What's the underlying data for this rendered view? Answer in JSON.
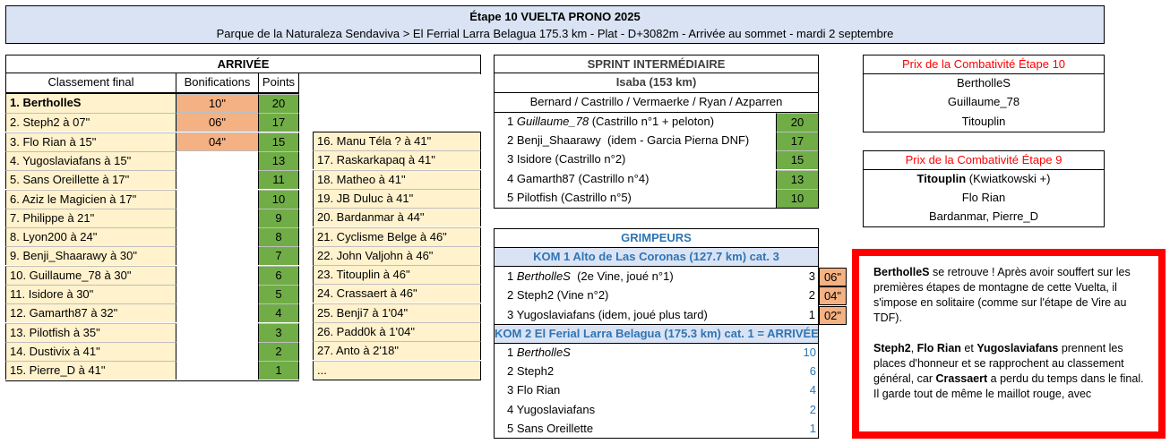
{
  "header": {
    "title": "Étape 10 VUELTA PRONO 2025",
    "subtitle": "Parque de la Naturaleza Sendaviva > El Ferrial Larra Belagua  175.3 km - Plat - D+3082m - Arrivée au sommet - mardi 2 septembre"
  },
  "arrivee": {
    "title": "ARRIVÉE",
    "col_classement": "Classement final",
    "col_bonif": "Bonifications",
    "col_points": "Points",
    "rows": [
      {
        "name": "1. BertholleS",
        "bonif": "10\"",
        "points": "20"
      },
      {
        "name": "2. Steph2 à 07\"",
        "bonif": "06\"",
        "points": "17"
      },
      {
        "name": "3. Flo Rian à 15\"",
        "bonif": "04\"",
        "points": "15"
      },
      {
        "name": "4. Yugoslaviafans à 15\"",
        "bonif": "",
        "points": "13"
      },
      {
        "name": "5. Sans Oreillette à 17\"",
        "bonif": "",
        "points": "11"
      },
      {
        "name": "6. Aziz le Magicien à 17\"",
        "bonif": "",
        "points": "10"
      },
      {
        "name": "7. Philippe à 21\"",
        "bonif": "",
        "points": "9"
      },
      {
        "name": "8. Lyon200 à 24\"",
        "bonif": "",
        "points": "8"
      },
      {
        "name": "9. Benji_Shaarawy à 30\"",
        "bonif": "",
        "points": "7"
      },
      {
        "name": "10. Guillaume_78 à 30\"",
        "bonif": "",
        "points": "6"
      },
      {
        "name": "11. Isidore à 30\"",
        "bonif": "",
        "points": "5"
      },
      {
        "name": "12. Gamarth87 à 32\"",
        "bonif": "",
        "points": "4"
      },
      {
        "name": "13. Pilotfish à 35\"",
        "bonif": "",
        "points": "3"
      },
      {
        "name": "14. Dustivix à 41\"",
        "bonif": "",
        "points": "2"
      },
      {
        "name": "15. Pierre_D à 41\"",
        "bonif": "",
        "points": "1"
      }
    ],
    "rest": [
      "16. Manu Téla ? à 41\"",
      "17. Raskarkapaq à 41\"",
      "18. Matheo à 41\"",
      "19. JB Duluc à 41\"",
      "20. Bardanmar à 44\"",
      "21. Cyclisme Belge à 46\"",
      "22. John Valjohn à 46\"",
      "23. Titouplin à 46\"",
      "24. Crassaert à 46\"",
      "25. Benji7 à 1'04\"",
      "26. Padd0k à 1'04\"",
      "27. Anto à 2'18\"",
      "..."
    ]
  },
  "sprint": {
    "title": "SPRINT INTERMÉDIAIRE",
    "location": "Isaba (153 km)",
    "riders": "Bernard / Castrillo / Vermaerke / Ryan / Azparren",
    "rows": [
      {
        "num": "1",
        "name": "Guillaume_78",
        "note": " (Castrillo n°1 + peloton)",
        "points": "20",
        "italic": true
      },
      {
        "num": "2",
        "name": "Benji_Shaarawy",
        "note": "  (idem - Garcia Pierna DNF)",
        "points": "17",
        "italic": false
      },
      {
        "num": "3",
        "name": "Isidore",
        "note": " (Castrillo n°2)",
        "points": "15",
        "italic": false
      },
      {
        "num": "4",
        "name": "Gamarth87",
        "note": " (Castrillo n°4)",
        "points": "13",
        "italic": false
      },
      {
        "num": "5",
        "name": "Pilotfish",
        "note": " (Castrillo n°5)",
        "points": "10",
        "italic": false
      }
    ]
  },
  "grimpeurs": {
    "title": "GRIMPEURS",
    "kom1": {
      "title": "KOM 1 Alto de Las Coronas (127.7 km)    cat. 3",
      "rows": [
        {
          "num": "1",
          "name": "BertholleS",
          "note": "  (2e Vine, joué n°1)",
          "pts": "3",
          "bonif": "06\"",
          "italic": true
        },
        {
          "num": "2",
          "name": "Steph2",
          "note": " (Vine n°2)",
          "pts": "2",
          "bonif": "04\"",
          "italic": false
        },
        {
          "num": "3",
          "name": "Yugoslaviafans",
          "note": " (idem, joué plus tard)",
          "pts": "1",
          "bonif": "02\"",
          "italic": false
        }
      ]
    },
    "kom2": {
      "title": "KOM 2 El Ferial Larra Belagua  (175.3 km)    cat. 1 = ARRIVÉE",
      "rows": [
        {
          "num": "1",
          "name": "BertholleS",
          "pts": "10",
          "italic": true
        },
        {
          "num": "2",
          "name": "Steph2",
          "pts": "6",
          "italic": false
        },
        {
          "num": "3",
          "name": "Flo Rian",
          "pts": "4",
          "italic": false
        },
        {
          "num": "4",
          "name": "Yugoslaviafans",
          "pts": "2",
          "italic": false
        },
        {
          "num": "5",
          "name": "Sans Oreillette",
          "pts": "1",
          "italic": false
        }
      ]
    }
  },
  "combat10": {
    "title": "Prix de la Combativité Étape 10",
    "rows": [
      "BertholleS",
      "Guillaume_78",
      "Titouplin"
    ]
  },
  "combat9": {
    "title": "Prix de la Combativité Étape 9",
    "first_bold": "Titouplin",
    "first_note": " (Kwiatkowski +)",
    "rows": [
      "Flo Rian",
      "Bardanmar, Pierre_D"
    ]
  },
  "comment": {
    "p1_bold": "BertholleS",
    "p1_text": " se retrouve ! Après avoir souffert sur les premières étapes de montagne de cette Vuelta, il s'impose en solitaire (comme sur l'étape de Vire au TDF).",
    "p2_b1": "Steph2",
    "p2_t1": ", ",
    "p2_b2": "Flo Rian",
    "p2_t2": " et ",
    "p2_b3": "Yugoslaviafans",
    "p2_t3": " prennent les places d'honneur et se rapprochent au classement général, car ",
    "p2_b4": "Crassaert",
    "p2_t4": " a perdu du temps dans le final. Il garde tout de même le maillot rouge, avec"
  },
  "colors": {
    "yellow": "#fff2cc",
    "pink": "#f4b183",
    "green": "#70ad47",
    "header_blue": "#dae3f3",
    "red": "#ff0000",
    "kom_blue": "#2e75b6"
  }
}
